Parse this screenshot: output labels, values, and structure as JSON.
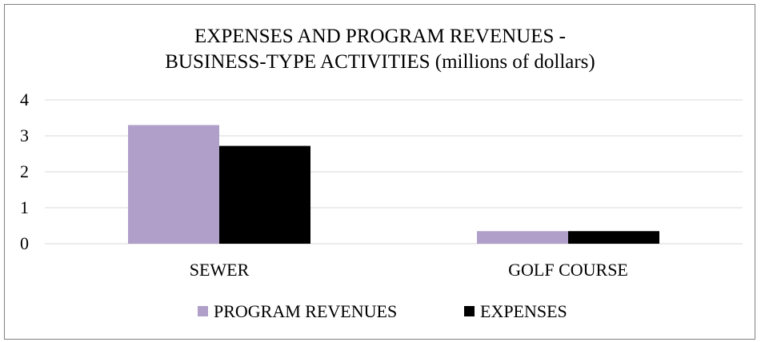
{
  "chart_data": {
    "type": "bar",
    "title_lines": [
      "EXPENSES AND PROGRAM REVENUES -",
      "BUSINESS-TYPE ACTIVITIES (millions of dollars)"
    ],
    "categories": [
      "SEWER",
      "GOLF COURSE"
    ],
    "series": [
      {
        "name": "PROGRAM REVENUES",
        "color": "#b09fc8",
        "values": [
          3.3,
          0.35
        ]
      },
      {
        "name": "EXPENSES",
        "color": "#000000",
        "values": [
          2.72,
          0.35
        ]
      }
    ],
    "ylim": [
      0,
      4
    ],
    "yticks": [
      0,
      1,
      2,
      3,
      4
    ],
    "gridlines": true,
    "gridline_color": "#d9d9d9",
    "legend_position": "bottom"
  }
}
